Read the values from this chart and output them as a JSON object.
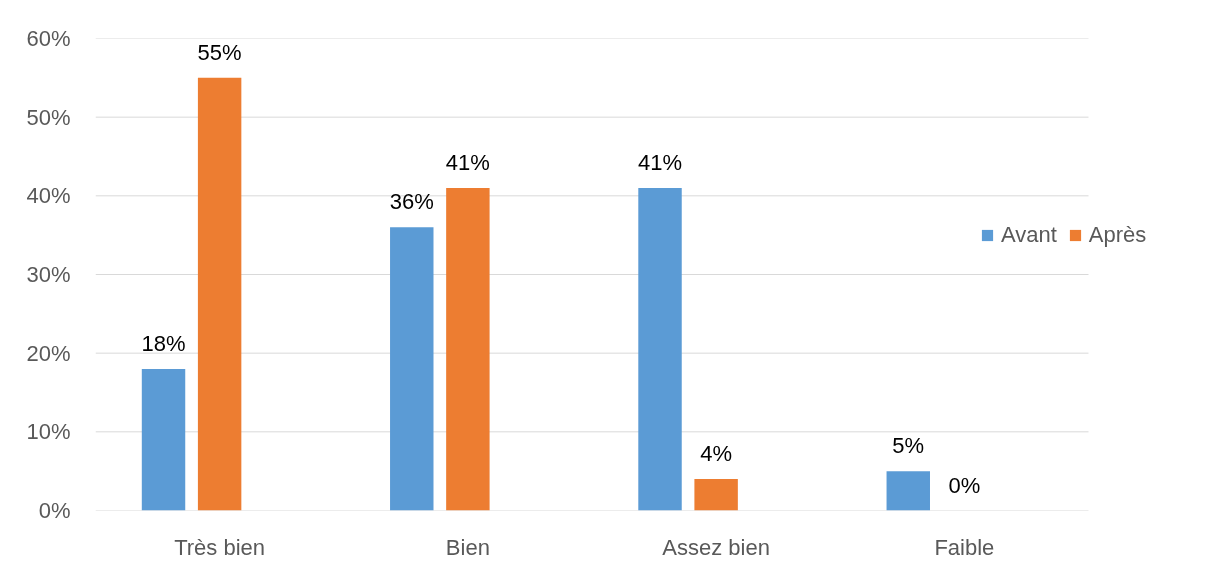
{
  "chart_data": {
    "type": "bar",
    "categories": [
      "Très bien",
      "Bien",
      "Assez bien",
      "Faible"
    ],
    "series": [
      {
        "name": "Avant",
        "color": "#5b9bd5",
        "values": [
          18,
          36,
          41,
          5
        ],
        "value_labels": [
          "18%",
          "36%",
          "41%",
          "5%"
        ]
      },
      {
        "name": "Après",
        "color": "#ed7d31",
        "values": [
          55,
          41,
          4,
          0
        ],
        "value_labels": [
          "55%",
          "41%",
          "4%",
          "0%"
        ]
      }
    ],
    "ylim": [
      0,
      60
    ],
    "yticks": [
      {
        "value": 0,
        "label": "0%"
      },
      {
        "value": 10,
        "label": "10%"
      },
      {
        "value": 20,
        "label": "20%"
      },
      {
        "value": 30,
        "label": "30%"
      },
      {
        "value": 40,
        "label": "40%"
      },
      {
        "value": 50,
        "label": "50%"
      },
      {
        "value": 60,
        "label": "60%"
      }
    ],
    "grid": "y",
    "legend": "right"
  }
}
